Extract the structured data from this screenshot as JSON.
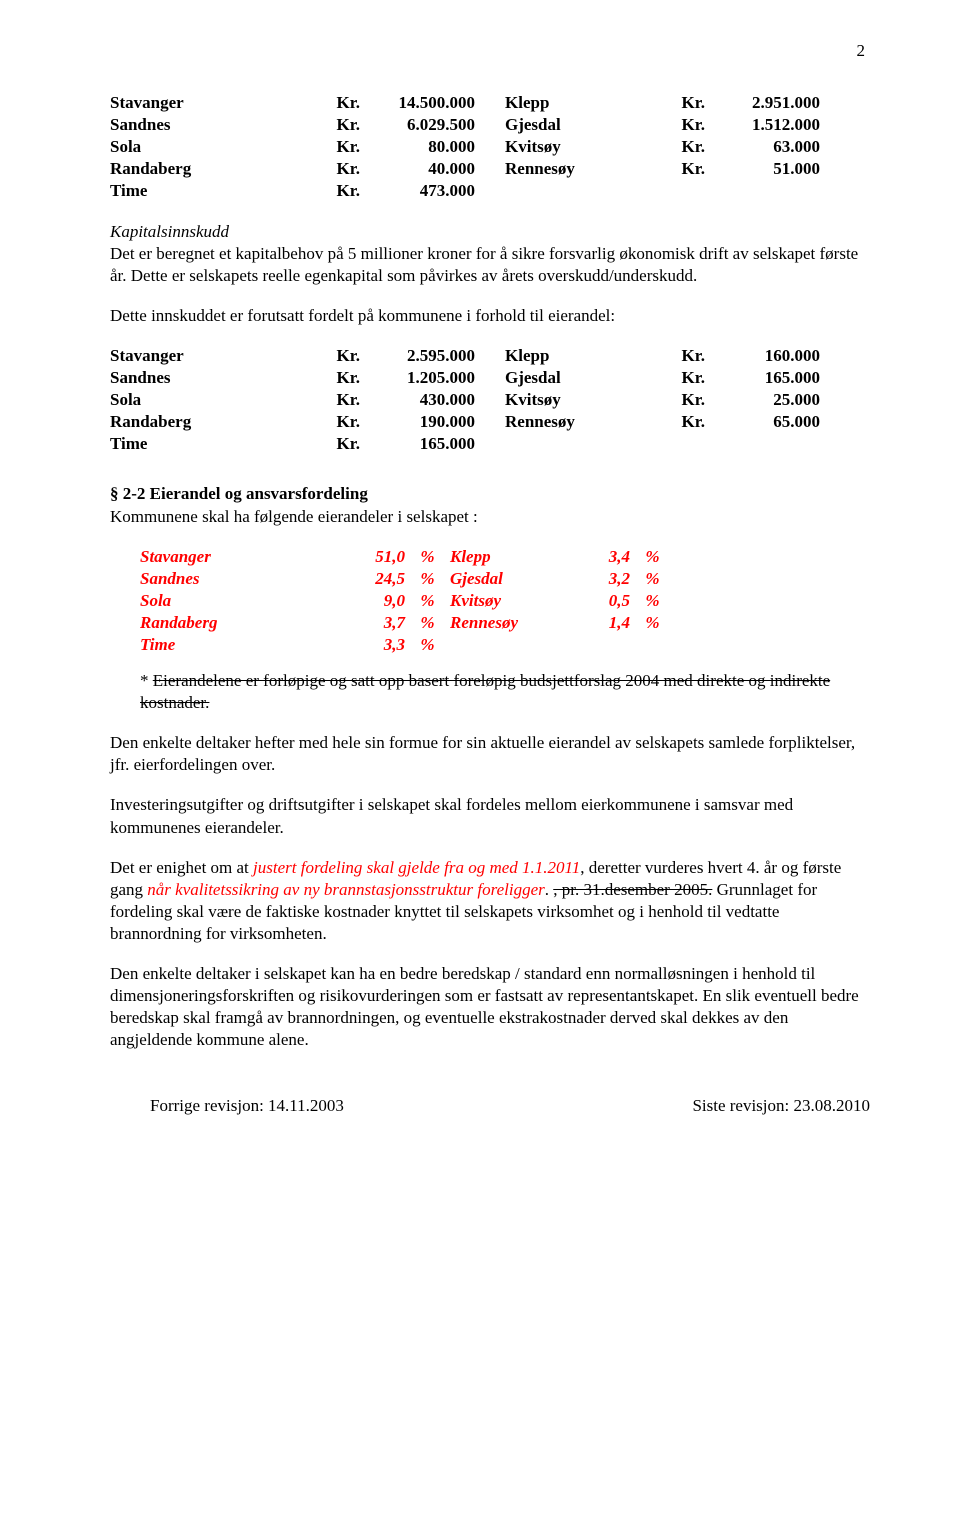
{
  "page_number": "2",
  "text_colors": {
    "body": "#000000",
    "emphasis_red": "#ff0000"
  },
  "alloc1": {
    "left": [
      {
        "name": "Stavanger",
        "kr": "Kr.",
        "amt": "14.500.000"
      },
      {
        "name": "Sandnes",
        "kr": "Kr.",
        "amt": "6.029.500"
      },
      {
        "name": "Sola",
        "kr": "Kr.",
        "amt": "80.000"
      },
      {
        "name": "Randaberg",
        "kr": "Kr.",
        "amt": "40.000"
      },
      {
        "name": "Time",
        "kr": "Kr.",
        "amt": "473.000"
      }
    ],
    "right": [
      {
        "name": "Klepp",
        "kr": "Kr.",
        "amt": "2.951.000"
      },
      {
        "name": "Gjesdal",
        "kr": "Kr.",
        "amt": "1.512.000"
      },
      {
        "name": "Kvitsøy",
        "kr": "Kr.",
        "amt": "63.000"
      },
      {
        "name": "Rennesøy",
        "kr": "Kr.",
        "amt": "51.000"
      }
    ]
  },
  "kapital_head": "Kapitalsinnskudd",
  "kapital_p1": "Det er beregnet et kapitalbehov på 5 millioner kroner for å sikre forsvarlig økonomisk drift av selskapet første år. Dette er selskapets reelle egenkapital som påvirkes av årets overskudd/underskudd.",
  "kapital_p2": "Dette innskuddet er forutsatt fordelt på kommunene i forhold til eierandel:",
  "alloc2": {
    "left": [
      {
        "name": "Stavanger",
        "kr": "Kr.",
        "amt": "2.595.000"
      },
      {
        "name": "Sandnes",
        "kr": "Kr.",
        "amt": "1.205.000"
      },
      {
        "name": "Sola",
        "kr": "Kr.",
        "amt": "430.000"
      },
      {
        "name": "Randaberg",
        "kr": "Kr.",
        "amt": "190.000"
      },
      {
        "name": "Time",
        "kr": "Kr.",
        "amt": "165.000"
      }
    ],
    "right": [
      {
        "name": "Klepp",
        "kr": "Kr.",
        "amt": "160.000"
      },
      {
        "name": "Gjesdal",
        "kr": "Kr.",
        "amt": "165.000"
      },
      {
        "name": "Kvitsøy",
        "kr": "Kr.",
        "amt": "25.000"
      },
      {
        "name": "Rennesøy",
        "kr": "Kr.",
        "amt": "65.000"
      }
    ]
  },
  "section22_head": "§ 2-2 Eierandel og ansvarsfordeling",
  "section22_intro": "Kommunene skal ha følgende eierandeler i selskapet :",
  "pct": {
    "left": [
      {
        "name": "Stavanger",
        "val": "51,0",
        "sym": "%"
      },
      {
        "name": "Sandnes",
        "val": "24,5",
        "sym": "%"
      },
      {
        "name": "Sola",
        "val": "9,0",
        "sym": "%"
      },
      {
        "name": "Randaberg",
        "val": "3,7",
        "sym": "%"
      },
      {
        "name": "Time",
        "val": "3,3",
        "sym": "%"
      }
    ],
    "right": [
      {
        "name": "Klepp",
        "val": "3,4",
        "sym": "%"
      },
      {
        "name": "Gjesdal",
        "val": "3,2",
        "sym": "%"
      },
      {
        "name": "Kvitsøy",
        "val": "0,5",
        "sym": "%"
      },
      {
        "name": "Rennesøy",
        "val": "1,4",
        "sym": "%"
      }
    ]
  },
  "struck_note_prefix": "* ",
  "struck_note": "Eierandelene er forløpige og satt opp basert foreløpig budsjettforslag 2004 med direkte og indirekte kostnader.",
  "p_heft": "Den enkelte deltaker hefter med hele sin formue for sin aktuelle eierandel av selskapets samlede forpliktelser, jfr. eierfordelingen over.",
  "p_invest": "Investeringsutgifter og driftsutgifter i selskapet skal fordeles mellom eierkommunene i samsvar med kommunenes eierandeler.",
  "p_enighet_a": "Det er enighet om at ",
  "p_enighet_red1": "justert fordeling skal gjelde fra og med 1.1.2011",
  "p_enighet_b": ", deretter vurderes hvert 4. år og første gang ",
  "p_enighet_red2": "når kvalitetssikring av ny brannstasjonsstruktur foreligger",
  "p_enighet_c": ". ",
  "p_enighet_struck": ", pr. 31.desember 2005.",
  "p_enighet_d": " Grunnlaget for fordeling skal være de faktiske kostnader knyttet til selskapets virksomhet og i henhold til vedtatte brannordning for virksomheten.",
  "p_bered": "Den enkelte deltaker i selskapet kan ha en bedre beredskap / standard enn normalløsningen i henhold til dimensjoneringsforskriften og risikovurderingen som er fastsatt av representantskapet. En slik eventuell bedre beredskap skal framgå av brannordningen, og eventuelle ekstrakostnader derved skal dekkes av den angjeldende kommune alene.",
  "footer_left": "Forrige revisjon: 14.11.2003",
  "footer_right": "Siste revisjon: 23.08.2010"
}
